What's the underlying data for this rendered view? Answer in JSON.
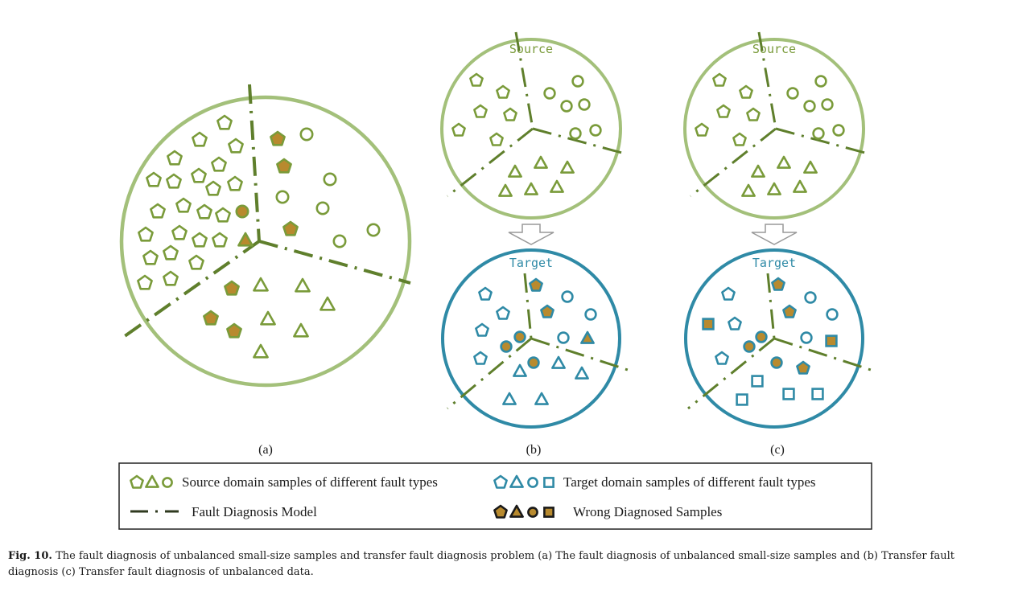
{
  "panels": {
    "a": {
      "label": "(a)"
    },
    "b": {
      "label": "(b)",
      "source_title": "Source",
      "target_title": "Target"
    },
    "c": {
      "label": "(c)",
      "source_title": "Source",
      "target_title": "Target"
    }
  },
  "legend": {
    "source_samples": "Source domain samples of different fault types",
    "target_samples": "Target domain samples of different fault types",
    "model": "Fault Diagnosis Model",
    "wrong": "Wrong Diagnosed Samples"
  },
  "caption": {
    "label": "Fig. 10.",
    "text": "The fault diagnosis of unbalanced small-size samples and transfer fault diagnosis problem (a) The fault diagnosis of unbalanced small-size samples and (b) Transfer fault diagnosis (c) Transfer fault diagnosis of unbalanced data."
  },
  "colors": {
    "source_green": "#7a9b3a",
    "circle_green": "#a3c07a",
    "target_blue": "#2f8aa6",
    "wrong_fill": "#b88a2e",
    "model_line": "#5f7f2c"
  },
  "icons": [
    "pentagon",
    "triangle",
    "circle",
    "square"
  ]
}
